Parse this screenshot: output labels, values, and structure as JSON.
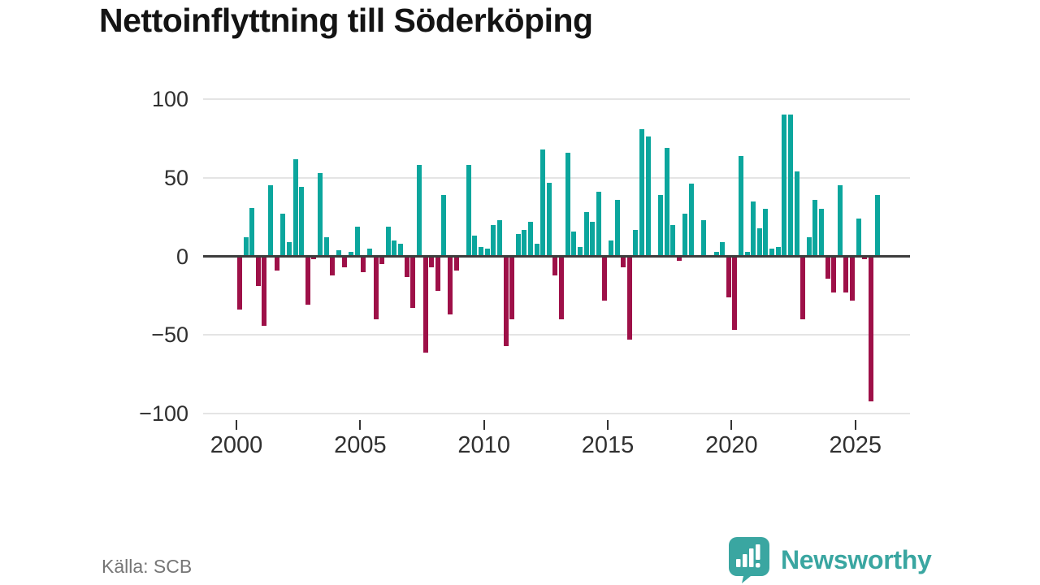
{
  "title": "Nettoinflyttning till Söderköping",
  "source": "Källa: SCB",
  "branding": {
    "name": "Newsworthy",
    "color": "#3aa6a1"
  },
  "chart_data": {
    "type": "bar",
    "title": "Nettoinflyttning till Söderköping",
    "frequency": "quarterly",
    "start": "2000-Q1",
    "end": "2025-Q4",
    "values": [
      -34,
      12,
      31,
      -19,
      -44,
      45,
      -9,
      27,
      9,
      62,
      44,
      -31,
      -2,
      53,
      12,
      -12,
      4,
      -7,
      3,
      19,
      -10,
      5,
      -40,
      -5,
      19,
      10,
      8,
      -13,
      -33,
      58,
      -61,
      -7,
      -22,
      39,
      -37,
      -9,
      0,
      58,
      13,
      6,
      5,
      20,
      23,
      -57,
      -40,
      14,
      17,
      22,
      8,
      68,
      47,
      -12,
      -40,
      66,
      16,
      6,
      28,
      22,
      41,
      -28,
      10,
      36,
      -7,
      -53,
      17,
      81,
      76,
      0,
      39,
      69,
      20,
      -3,
      27,
      46,
      0,
      23,
      0,
      3,
      9,
      -26,
      -47,
      64,
      3,
      35,
      18,
      30,
      5,
      6,
      90,
      90,
      54,
      -40,
      12,
      36,
      30,
      -14,
      -23,
      45,
      -23,
      -28,
      24,
      -2,
      -92,
      39
    ],
    "x_tick_years": [
      2000,
      2005,
      2010,
      2015,
      2020,
      2025
    ],
    "y_ticks": [
      100,
      50,
      0,
      -50,
      -100
    ],
    "ylim": [
      -100,
      100
    ],
    "grid": true,
    "legend": false,
    "positive_color": "#0ba69d",
    "negative_color": "#9e1048"
  }
}
